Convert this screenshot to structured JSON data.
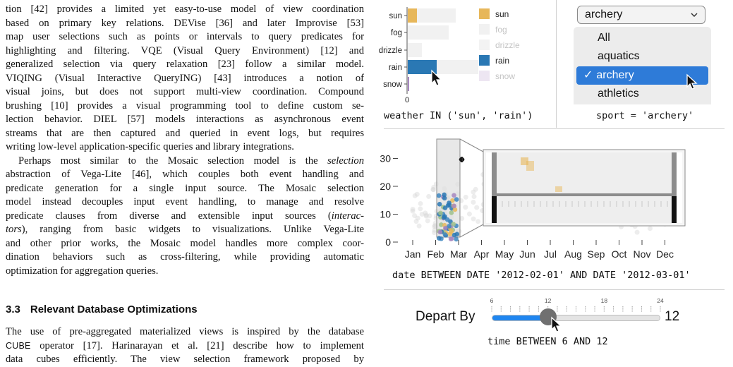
{
  "text": {
    "paragraph1_lines": [
      "tion [42] provides a limited yet easy-to-use model of view coordination",
      "based on primary key relations. DEVise [36] and later Improvise [53]",
      "map user selections such as points or intervals to query predicates for",
      "highlighting and filtering. VQE (Visual Query Environment) [12] and",
      "generalized selection via query relaxation [23] follow a similar model.",
      "VIQING (Visual Interactive QueryING) [43] introduces a notion of",
      "visual joins, but does not support multi-view coordination. Compound",
      "brushing [10] provides a visual programming tool to define custom se-",
      "lection behavior. DIEL [57] models interactions as asynchronous event",
      "streams that are then captured and queried in event logs, but requires",
      "writing low-level application-specific queries and library integrations."
    ],
    "paragraph2": {
      "line1_pre": "Perhaps most similar to the Mosaic selection model is the ",
      "line1_em": "selection",
      "line2": "abstraction of Vega-Lite [46], which couples both event handling and",
      "line3": "predicate generation for a single input source. The Mosaic selection",
      "line4": "model instead decouples input event handling, to manage and resolve",
      "line5_pre": "predicate clauses from diverse and extensible input sources (",
      "line5_em": "interac-",
      "line6_em": "tors",
      "line6_post": "), ranging from basic widgets to visualizations. Unlike Vega-Lite",
      "line7": "and other prior works, the Mosaic model handles more complex coor-",
      "line8": "dination behaviors such as cross-filtering, while providing automatic",
      "line9": "optimization for aggregation queries."
    },
    "section_number": "3.3",
    "section_title": "Relevant Database Optimizations",
    "paragraph3": {
      "line1": "The use of pre-aggregated materialized views is inspired by the database",
      "line2_sc": "CUBE",
      "line2_post": " operator [17]. Harinarayan et al. [21] describe how to implement",
      "line3": "data cubes efficiently. The view selection framework proposed by"
    }
  },
  "figure": {
    "weather_chart": {
      "categories": [
        "sun",
        "fog",
        "drizzle",
        "rain",
        "snow"
      ],
      "selected": [
        "sun",
        "rain"
      ],
      "zero_tick": "0",
      "predicate": "weather IN ('sun', 'rain')",
      "legend": [
        {
          "label": "sun",
          "color": "#e7b75a",
          "active": true
        },
        {
          "label": "fog",
          "color": "#f1f1f1",
          "active": false
        },
        {
          "label": "drizzle",
          "color": "#f3f3f3",
          "active": false
        },
        {
          "label": "rain",
          "color": "#2a78b4",
          "active": true
        },
        {
          "label": "snow",
          "color": "#ede6f2",
          "active": false
        }
      ],
      "colors": {
        "sun": "#e7b75a",
        "rain": "#2a78b4",
        "snow": "#a787c0",
        "background": "#f1f1f1"
      }
    },
    "sport_menu": {
      "selected_value": "archery",
      "chevron_icon": "chevron-down-icon",
      "options": [
        "All",
        "aquatics",
        "archery",
        "athletics"
      ],
      "checkmark": "✓",
      "predicate": "sport = 'archery'",
      "accent_color": "#2e7bd8"
    },
    "scatter_chart": {
      "y_ticks": [
        "0",
        "10",
        "20",
        "30"
      ],
      "x_ticks": [
        "Jan",
        "Feb",
        "Mar",
        "Apr",
        "May",
        "Jun",
        "Jul",
        "Aug",
        "Sep",
        "Oct",
        "Nov",
        "Dec"
      ],
      "brush_range": [
        "Feb",
        "Mar"
      ],
      "move_cursor_icon": "move-cursor-icon",
      "predicate": "date BETWEEN DATE '2012-02-01' AND DATE '2012-03-01'"
    },
    "depart_slider": {
      "label": "Depart By",
      "value_text": "12",
      "min": 6,
      "max": 24,
      "value": 12,
      "tick_labels": [
        "6",
        "12",
        "18",
        "24"
      ],
      "predicate": "time BETWEEN 6 AND 12",
      "fill_color": "#1f86f0"
    }
  }
}
